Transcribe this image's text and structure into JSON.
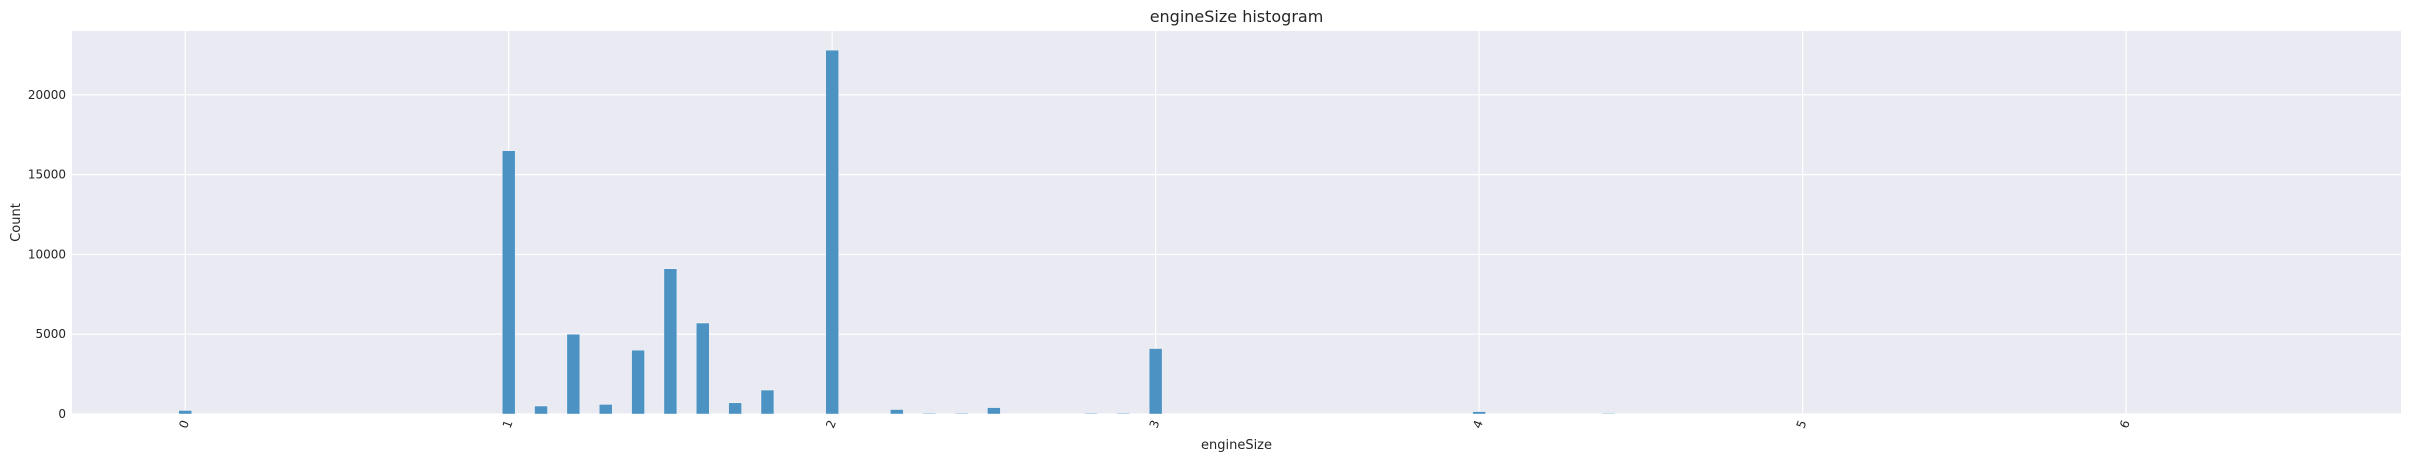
{
  "chart_data": {
    "type": "bar",
    "title": "engineSize histogram",
    "xlabel": "engineSize",
    "ylabel": "Count",
    "xlim": [
      -0.35,
      6.85
    ],
    "ylim": [
      0,
      24000
    ],
    "xticks": [
      "0",
      "1",
      "2",
      "3",
      "4",
      "5",
      "6"
    ],
    "yticks": [
      "0",
      "5000",
      "10000",
      "15000",
      "20000"
    ],
    "grid": true,
    "colors": {
      "bar": "#4c93c3",
      "background": "#eaeaf2",
      "grid": "#ffffff"
    },
    "bin_width": 0.04,
    "x": [
      0.0,
      1.0,
      1.1,
      1.2,
      1.3,
      1.4,
      1.5,
      1.6,
      1.7,
      1.8,
      2.0,
      2.2,
      2.3,
      2.4,
      2.5,
      2.8,
      2.9,
      3.0,
      4.0,
      4.4
    ],
    "values": [
      220,
      16500,
      500,
      5000,
      600,
      4000,
      9100,
      5700,
      700,
      1500,
      22800,
      280,
      50,
      50,
      400,
      50,
      50,
      4100,
      150,
      40
    ]
  }
}
